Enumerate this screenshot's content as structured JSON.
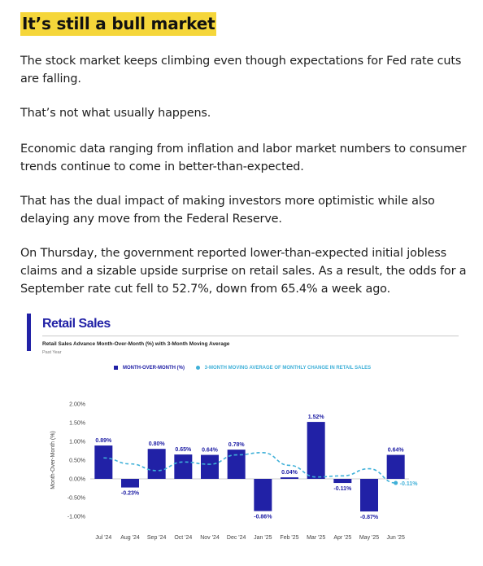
{
  "headline": "It’s still a bull market",
  "paragraphs": [
    "The stock market keeps climbing even though expectations for Fed rate cuts are falling.",
    "That’s not what usually happens.",
    "Economic data ranging from inflation and labor market numbers to consumer trends continue to come in better-than-expected.",
    "That has the dual impact of making investors more optimistic while also delaying any move from the Federal Reserve.",
    "On Thursday, the government reported lower-than-expected initial jobless claims and a sizable upside surprise on retail sales. As a result, the odds for a September rate cut fell to 52.7%, down from 65.4% a week ago."
  ],
  "figure": {
    "title": "Retail Sales",
    "subtitle": "Retail Sales Advance Month-Over-Month (%) with 3-Month Moving Average",
    "period": "Past Year",
    "legend": [
      {
        "label": "MONTH-OVER-MONTH (%)",
        "color": "#2121a6",
        "marker": "square"
      },
      {
        "label": "3-MONTH MOVING AVERAGE OF MONTHLY CHANGE IN RETAIL SALES",
        "color": "#3fb0d8",
        "marker": "circle"
      }
    ]
  },
  "chart_data": {
    "type": "bar",
    "title": "Retail Sales",
    "ylabel": "Month-Over-Month (%)",
    "xlabel": "",
    "ylim": [
      -1.0,
      2.0
    ],
    "yticks": [
      2.0,
      1.5,
      1.0,
      0.5,
      0.0,
      -0.5,
      -1.0
    ],
    "ytick_labels": [
      "2.00%",
      "1.50%",
      "1.00%",
      "0.50%",
      "0.00%",
      "-0.50%",
      "-1.00%"
    ],
    "grid": false,
    "legend_position": "top",
    "categories": [
      "Jul '24",
      "Aug '24",
      "Sep '24",
      "Oct '24",
      "Nov '24",
      "Dec '24",
      "Jan '25",
      "Feb '25",
      "Mar '25",
      "Apr '25",
      "May '25",
      "Jun '25"
    ],
    "series": [
      {
        "name": "MONTH-OVER-MONTH (%)",
        "kind": "bar",
        "color": "#2121a6",
        "values": [
          0.89,
          -0.23,
          0.8,
          0.65,
          0.64,
          0.78,
          -0.86,
          0.04,
          1.52,
          -0.11,
          -0.87,
          0.64
        ],
        "labels": [
          "0.89%",
          "-0.23%",
          "0.80%",
          "0.65%",
          "0.64%",
          "0.78%",
          "-0.86%",
          "0.04%",
          "1.52%",
          "-0.11%",
          "-0.87%",
          "0.64%"
        ]
      },
      {
        "name": "3-MONTH MOVING AVERAGE OF MONTHLY CHANGE IN RETAIL SALES",
        "kind": "line",
        "style": "dashed",
        "color": "#3fb0d8",
        "values": [
          0.56,
          0.4,
          0.22,
          0.45,
          0.39,
          0.64,
          0.7,
          0.36,
          0.05,
          0.08,
          0.27,
          -0.11
        ],
        "end_label": "-0.11%"
      }
    ]
  }
}
